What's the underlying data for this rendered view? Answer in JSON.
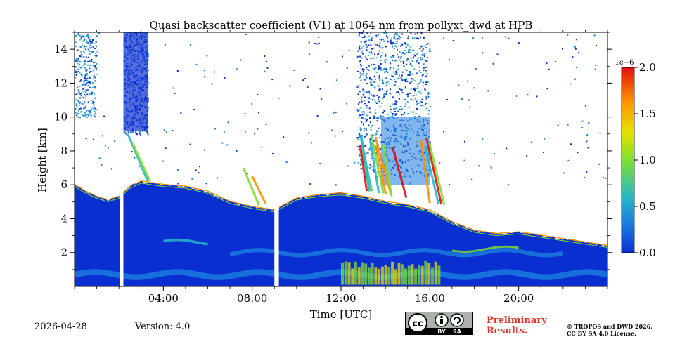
{
  "chart_data": {
    "type": "heatmap",
    "title": "Quasi backscatter coefficient (V1) at 1064 nm from pollyxt_dwd at HPB",
    "xlabel": "Time [UTC]",
    "ylabel": "Height [km]",
    "x_ticks": [
      "04:00",
      "08:00",
      "12:00",
      "16:00",
      "20:00"
    ],
    "x_tick_hours": [
      4,
      8,
      12,
      16,
      20
    ],
    "xlim_hours": [
      0,
      24
    ],
    "y_ticks": [
      "2",
      "4",
      "6",
      "8",
      "10",
      "12",
      "14"
    ],
    "y_tick_values": [
      2,
      4,
      6,
      8,
      10,
      12,
      14
    ],
    "ylim_km": [
      0,
      15
    ],
    "colorbar": {
      "ticks": [
        "0.0",
        "0.5",
        "1.0",
        "1.5",
        "2.0"
      ],
      "tick_values": [
        0.0,
        0.5,
        1.0,
        1.5,
        2.0
      ],
      "range": [
        0.0,
        2.0
      ],
      "scale_label": "1e−6",
      "colormap": [
        "#0a2fd0",
        "#1a7ae0",
        "#25b8c8",
        "#7fe030",
        "#e8e000",
        "#ff9000",
        "#e01010"
      ]
    },
    "boundary_layer_top_km": [
      [
        0.0,
        6.0
      ],
      [
        0.5,
        5.6
      ],
      [
        1.0,
        5.3
      ],
      [
        1.5,
        5.1
      ],
      [
        2.0,
        5.3
      ],
      [
        2.5,
        5.9
      ],
      [
        3.0,
        6.2
      ],
      [
        4.0,
        6.0
      ],
      [
        5.0,
        5.9
      ],
      [
        6.0,
        5.6
      ],
      [
        7.0,
        5.0
      ],
      [
        8.0,
        4.7
      ],
      [
        9.0,
        4.5
      ],
      [
        10.0,
        5.2
      ],
      [
        11.0,
        5.4
      ],
      [
        12.0,
        5.5
      ],
      [
        13.0,
        5.3
      ],
      [
        14.0,
        5.0
      ],
      [
        15.0,
        4.8
      ],
      [
        16.0,
        4.5
      ],
      [
        17.0,
        3.8
      ],
      [
        18.0,
        3.3
      ],
      [
        19.0,
        3.1
      ],
      [
        20.0,
        3.2
      ],
      [
        21.0,
        3.0
      ],
      [
        22.0,
        2.8
      ],
      [
        23.0,
        2.6
      ],
      [
        24.0,
        2.4
      ]
    ],
    "data_gaps_hours": [
      [
        2.05,
        2.2
      ],
      [
        9.0,
        9.2
      ]
    ]
  },
  "footer": {
    "date": "2026-04-28",
    "version": "Version: 4.0",
    "preliminary": [
      "Preliminary",
      "Results."
    ],
    "copyright": [
      "© TROPOS and DWD 2026.",
      "CC BY SA 4.0 License."
    ],
    "license_badge": {
      "icon": "cc-by-sa-icon",
      "by": "BY",
      "sa": "SA",
      "cc": "cc"
    }
  }
}
